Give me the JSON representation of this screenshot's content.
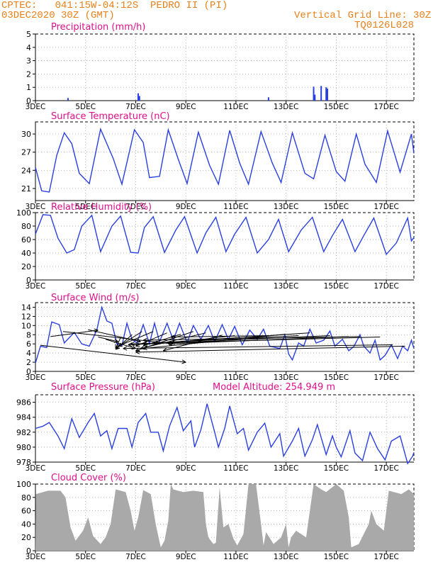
{
  "header": {
    "line1": "CPTEC:   041:15W-04:12S  PEDRO II (PI)",
    "line2": "03DEC2020 30Z (GMT)",
    "grid_note": "Vertical Grid Line: 30Z",
    "code": "TQ0126L028"
  },
  "colors": {
    "header": "#e8801a",
    "title": "#e0108a",
    "line": "#2a3fe0",
    "cloud": "#a9a9a9"
  },
  "x_ticks": [
    "3DEC",
    "5DEC",
    "7DEC",
    "9DEC",
    "11DEC",
    "13DEC",
    "15DEC",
    "17DEC"
  ],
  "chart_data": [
    {
      "type": "bar",
      "title": "Precipitation (mm/h)",
      "ylim": [
        0,
        5
      ],
      "y_ticks": [
        0,
        1,
        2,
        3,
        4,
        5
      ],
      "points": [
        [
          4.3,
          0.2
        ],
        [
          7.1,
          0.55
        ],
        [
          7.15,
          0.35
        ],
        [
          12.3,
          0.25
        ],
        [
          14.1,
          1.05
        ],
        [
          14.15,
          0.45
        ],
        [
          14.4,
          1.1
        ],
        [
          14.6,
          1.0
        ],
        [
          14.65,
          0.9
        ]
      ]
    },
    {
      "type": "line",
      "title": "Surface Temperature (nC)",
      "ylim": [
        19,
        32
      ],
      "y_ticks": [
        21,
        24,
        27,
        30
      ],
      "points": [
        [
          3.0,
          24.5
        ],
        [
          3.25,
          20.6
        ],
        [
          3.55,
          20.4
        ],
        [
          3.85,
          26.5
        ],
        [
          4.15,
          30.2
        ],
        [
          4.45,
          28.4
        ],
        [
          4.75,
          23.5
        ],
        [
          5.15,
          21.8
        ],
        [
          5.6,
          30.8
        ],
        [
          6.1,
          26.0
        ],
        [
          6.45,
          21.7
        ],
        [
          6.95,
          30.7
        ],
        [
          7.3,
          28.6
        ],
        [
          7.55,
          22.8
        ],
        [
          7.95,
          23.0
        ],
        [
          8.3,
          30.7
        ],
        [
          8.7,
          25.8
        ],
        [
          9.05,
          21.8
        ],
        [
          9.5,
          30.3
        ],
        [
          9.95,
          24.8
        ],
        [
          10.3,
          21.7
        ],
        [
          10.75,
          30.6
        ],
        [
          11.15,
          25.2
        ],
        [
          11.5,
          21.7
        ],
        [
          12.0,
          30.4
        ],
        [
          12.45,
          25.2
        ],
        [
          12.8,
          22.0
        ],
        [
          13.25,
          30.2
        ],
        [
          13.75,
          23.5
        ],
        [
          14.1,
          22.6
        ],
        [
          14.55,
          29.8
        ],
        [
          15.0,
          23.8
        ],
        [
          15.35,
          22.2
        ],
        [
          15.8,
          30.0
        ],
        [
          16.15,
          25.0
        ],
        [
          16.6,
          22.0
        ],
        [
          17.05,
          30.5
        ],
        [
          17.55,
          23.7
        ],
        [
          18.0,
          30.0
        ],
        [
          18.1,
          26.8
        ]
      ]
    },
    {
      "type": "line",
      "title": "Relative Humidity (%)",
      "ylim": [
        0,
        100
      ],
      "y_ticks": [
        0,
        20,
        40,
        60,
        80,
        100
      ],
      "points": [
        [
          3.0,
          68
        ],
        [
          3.3,
          97
        ],
        [
          3.6,
          96
        ],
        [
          3.9,
          62
        ],
        [
          4.25,
          40
        ],
        [
          4.55,
          45
        ],
        [
          4.85,
          80
        ],
        [
          5.25,
          96
        ],
        [
          5.6,
          42
        ],
        [
          6.05,
          80
        ],
        [
          6.4,
          95
        ],
        [
          6.8,
          41
        ],
        [
          7.1,
          40
        ],
        [
          7.35,
          78
        ],
        [
          7.7,
          94
        ],
        [
          8.15,
          41
        ],
        [
          8.6,
          74
        ],
        [
          8.95,
          94
        ],
        [
          9.45,
          40
        ],
        [
          9.8,
          70
        ],
        [
          10.2,
          93
        ],
        [
          10.6,
          42
        ],
        [
          10.95,
          68
        ],
        [
          11.4,
          93
        ],
        [
          11.85,
          40
        ],
        [
          12.3,
          60
        ],
        [
          12.7,
          90
        ],
        [
          13.1,
          42
        ],
        [
          13.6,
          74
        ],
        [
          14.05,
          93
        ],
        [
          14.5,
          42
        ],
        [
          14.85,
          66
        ],
        [
          15.25,
          90
        ],
        [
          15.75,
          42
        ],
        [
          16.1,
          66
        ],
        [
          16.5,
          92
        ],
        [
          17.0,
          38
        ],
        [
          17.4,
          55
        ],
        [
          17.85,
          92
        ],
        [
          18.0,
          58
        ],
        [
          18.1,
          63
        ]
      ]
    },
    {
      "type": "line",
      "title": "Surface Wind (m/s)",
      "ylim": [
        0,
        15
      ],
      "y_ticks": [
        0,
        2,
        4,
        6,
        8,
        10,
        12,
        14
      ],
      "points": [
        [
          3.0,
          1.8
        ],
        [
          3.2,
          5.5
        ],
        [
          3.45,
          5.2
        ],
        [
          3.65,
          10.8
        ],
        [
          3.95,
          10.2
        ],
        [
          4.15,
          6.2
        ],
        [
          4.55,
          8.5
        ],
        [
          4.85,
          6.0
        ],
        [
          5.15,
          5.5
        ],
        [
          5.45,
          9.0
        ],
        [
          5.65,
          14.0
        ],
        [
          5.85,
          11.0
        ],
        [
          6.05,
          10.5
        ],
        [
          6.25,
          6.0
        ],
        [
          6.45,
          5.6
        ],
        [
          6.65,
          10.5
        ],
        [
          6.85,
          7.0
        ],
        [
          7.05,
          6.2
        ],
        [
          7.3,
          10.2
        ],
        [
          7.55,
          6.0
        ],
        [
          7.75,
          10.5
        ],
        [
          7.95,
          6.5
        ],
        [
          8.25,
          10.5
        ],
        [
          8.5,
          6.8
        ],
        [
          8.75,
          10.5
        ],
        [
          9.05,
          6.3
        ],
        [
          9.3,
          10.0
        ],
        [
          9.6,
          7.0
        ],
        [
          9.9,
          10.0
        ],
        [
          10.15,
          6.5
        ],
        [
          10.45,
          10.2
        ],
        [
          10.7,
          7.0
        ],
        [
          10.95,
          9.8
        ],
        [
          11.25,
          5.8
        ],
        [
          11.55,
          9.0
        ],
        [
          11.85,
          7.0
        ],
        [
          12.1,
          9.2
        ],
        [
          12.35,
          5.5
        ],
        [
          12.75,
          5.0
        ],
        [
          12.95,
          8.0
        ],
        [
          13.1,
          3.8
        ],
        [
          13.25,
          2.5
        ],
        [
          13.5,
          6.2
        ],
        [
          13.7,
          5.5
        ],
        [
          13.95,
          9.2
        ],
        [
          14.2,
          6.2
        ],
        [
          14.5,
          6.8
        ],
        [
          14.75,
          8.8
        ],
        [
          14.95,
          5.5
        ],
        [
          15.25,
          7.0
        ],
        [
          15.5,
          4.5
        ],
        [
          15.7,
          5.4
        ],
        [
          15.95,
          8.0
        ],
        [
          16.1,
          5.5
        ],
        [
          16.35,
          4.0
        ],
        [
          16.55,
          6.8
        ],
        [
          16.75,
          2.5
        ],
        [
          16.95,
          3.5
        ],
        [
          17.2,
          5.8
        ],
        [
          17.45,
          2.8
        ],
        [
          17.65,
          5.5
        ],
        [
          17.85,
          4.5
        ],
        [
          18.0,
          6.8
        ],
        [
          18.1,
          5.0
        ]
      ],
      "vectors": [
        [
          3.2,
          5.7,
          9.0,
          2.0
        ],
        [
          3.6,
          7.6,
          5.5,
          9.0
        ],
        [
          4.1,
          8.7,
          8.5,
          6.0
        ],
        [
          5.1,
          9.1,
          7.2,
          6.5
        ],
        [
          5.5,
          7.5,
          6.3,
          6.5
        ],
        [
          5.8,
          7.0,
          7.0,
          5.0
        ],
        [
          6.4,
          7.4,
          6.2,
          5.0
        ],
        [
          6.85,
          8.0,
          6.2,
          4.8
        ],
        [
          7.25,
          8.7,
          6.2,
          5.0
        ],
        [
          7.7,
          8.7,
          6.3,
          5.5
        ],
        [
          8.25,
          8.4,
          7.0,
          5.5
        ],
        [
          8.8,
          8.1,
          7.3,
          5.6
        ],
        [
          9.3,
          8.7,
          7.0,
          4.5
        ],
        [
          9.8,
          8.4,
          7.2,
          5.0
        ],
        [
          10.45,
          7.9,
          8.1,
          4.5
        ],
        [
          10.95,
          7.8,
          8.4,
          6.2
        ],
        [
          12.35,
          7.8,
          8.4,
          7.5
        ],
        [
          12.95,
          8.1,
          7.3,
          5.0
        ],
        [
          13.5,
          7.8,
          7.7,
          6.2
        ],
        [
          13.95,
          8.4,
          7.3,
          6.0
        ],
        [
          14.75,
          7.8,
          6.7,
          5.8
        ],
        [
          15.5,
          7.6,
          8.3,
          6.0
        ],
        [
          15.95,
          7.6,
          7.3,
          6.8
        ],
        [
          16.75,
          7.5,
          6.8,
          6.0
        ],
        [
          17.25,
          5.8,
          6.5,
          5.0
        ],
        [
          17.75,
          5.5,
          7.0,
          4.2
        ]
      ]
    },
    {
      "type": "line",
      "title": "Surface Pressure (hPa)",
      "annotation": "Model Altitude: 254.949 m",
      "ylim": [
        978,
        987
      ],
      "y_ticks": [
        978,
        980,
        982,
        984,
        986
      ],
      "points": [
        [
          3.0,
          982.5
        ],
        [
          3.3,
          982.8
        ],
        [
          3.55,
          983.3
        ],
        [
          3.9,
          981.5
        ],
        [
          4.15,
          979.8
        ],
        [
          4.45,
          983.8
        ],
        [
          4.75,
          981.3
        ],
        [
          5.1,
          983.3
        ],
        [
          5.35,
          984.5
        ],
        [
          5.6,
          981.5
        ],
        [
          5.85,
          982.2
        ],
        [
          6.05,
          979.8
        ],
        [
          6.3,
          982.5
        ],
        [
          6.65,
          982.5
        ],
        [
          6.85,
          980.0
        ],
        [
          7.1,
          983.3
        ],
        [
          7.4,
          984.5
        ],
        [
          7.6,
          982.0
        ],
        [
          7.9,
          982.0
        ],
        [
          8.1,
          979.5
        ],
        [
          8.35,
          982.8
        ],
        [
          8.65,
          985.3
        ],
        [
          8.9,
          982.2
        ],
        [
          9.2,
          983.5
        ],
        [
          9.35,
          980.0
        ],
        [
          9.6,
          982.3
        ],
        [
          9.85,
          985.8
        ],
        [
          10.15,
          982.0
        ],
        [
          10.3,
          980.0
        ],
        [
          10.55,
          982.5
        ],
        [
          10.75,
          985.5
        ],
        [
          11.05,
          981.8
        ],
        [
          11.3,
          982.5
        ],
        [
          11.5,
          979.6
        ],
        [
          11.85,
          982.0
        ],
        [
          12.15,
          983.2
        ],
        [
          12.4,
          980.0
        ],
        [
          12.75,
          981.8
        ],
        [
          12.9,
          978.8
        ],
        [
          13.25,
          980.8
        ],
        [
          13.5,
          982.5
        ],
        [
          13.75,
          978.8
        ],
        [
          14.05,
          981.0
        ],
        [
          14.25,
          983.0
        ],
        [
          14.6,
          979.0
        ],
        [
          14.85,
          981.5
        ],
        [
          15.0,
          980.0
        ],
        [
          15.2,
          978.7
        ],
        [
          15.55,
          982.2
        ],
        [
          15.75,
          979.2
        ],
        [
          16.05,
          978.2
        ],
        [
          16.35,
          982.0
        ],
        [
          16.65,
          979.8
        ],
        [
          16.95,
          978.3
        ],
        [
          17.2,
          980.8
        ],
        [
          17.55,
          981.5
        ],
        [
          17.85,
          977.8
        ],
        [
          18.05,
          978.8
        ],
        [
          18.1,
          979.3
        ]
      ]
    },
    {
      "type": "area",
      "title": "Cloud Cover (%)",
      "ylim": [
        0,
        100
      ],
      "y_ticks": [
        0,
        20,
        40,
        60,
        80,
        100
      ],
      "points": [
        [
          3.0,
          2
        ],
        [
          3.02,
          85
        ],
        [
          3.5,
          90
        ],
        [
          4.0,
          90
        ],
        [
          4.2,
          80
        ],
        [
          4.4,
          35
        ],
        [
          4.6,
          15
        ],
        [
          4.9,
          30
        ],
        [
          5.1,
          50
        ],
        [
          5.3,
          22
        ],
        [
          5.6,
          10
        ],
        [
          5.8,
          20
        ],
        [
          6.0,
          40
        ],
        [
          6.2,
          92
        ],
        [
          6.6,
          88
        ],
        [
          6.8,
          60
        ],
        [
          6.95,
          30
        ],
        [
          7.1,
          50
        ],
        [
          7.3,
          91
        ],
        [
          7.6,
          85
        ],
        [
          7.8,
          40
        ],
        [
          8.0,
          5
        ],
        [
          8.15,
          15
        ],
        [
          8.3,
          45
        ],
        [
          8.4,
          100
        ],
        [
          8.5,
          92
        ],
        [
          8.9,
          88
        ],
        [
          9.3,
          90
        ],
        [
          9.7,
          88
        ],
        [
          9.8,
          40
        ],
        [
          9.9,
          20
        ],
        [
          10.1,
          10
        ],
        [
          10.2,
          12
        ],
        [
          10.35,
          95
        ],
        [
          10.5,
          35
        ],
        [
          10.7,
          40
        ],
        [
          10.9,
          18
        ],
        [
          11.05,
          8
        ],
        [
          11.3,
          25
        ],
        [
          11.5,
          100
        ],
        [
          11.8,
          100
        ],
        [
          12.0,
          40
        ],
        [
          12.1,
          8
        ],
        [
          12.2,
          28
        ],
        [
          12.5,
          10
        ],
        [
          12.8,
          20
        ],
        [
          13.0,
          40
        ],
        [
          13.1,
          5
        ],
        [
          13.2,
          20
        ],
        [
          13.4,
          30
        ],
        [
          13.6,
          25
        ],
        [
          13.8,
          20
        ],
        [
          14.1,
          100
        ],
        [
          14.4,
          92
        ],
        [
          14.6,
          88
        ],
        [
          15.0,
          100
        ],
        [
          15.3,
          90
        ],
        [
          15.5,
          50
        ],
        [
          15.6,
          5
        ],
        [
          15.9,
          10
        ],
        [
          16.3,
          40
        ],
        [
          16.4,
          60
        ],
        [
          16.6,
          40
        ],
        [
          16.9,
          30
        ],
        [
          17.1,
          90
        ],
        [
          17.3,
          88
        ],
        [
          17.6,
          85
        ],
        [
          17.9,
          92
        ],
        [
          18.1,
          85
        ]
      ]
    }
  ]
}
